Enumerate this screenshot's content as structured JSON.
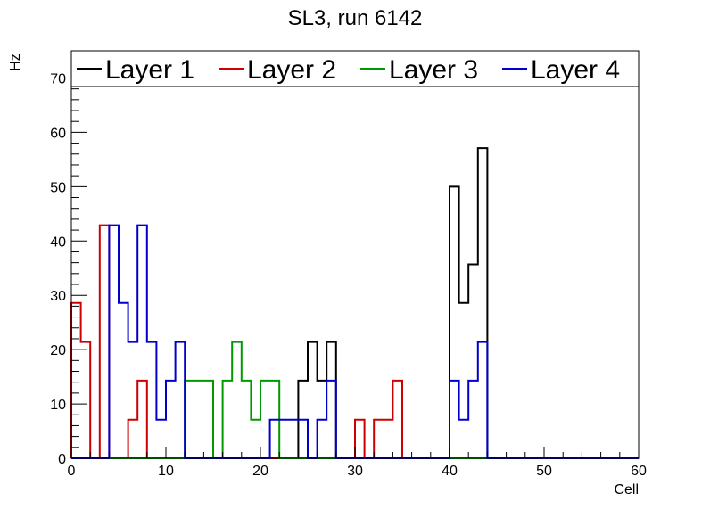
{
  "chart_data": {
    "type": "line",
    "title": "SL3, run 6142",
    "xlabel": "Cell",
    "ylabel": "Hz",
    "xlim": [
      0,
      60
    ],
    "ylim": [
      0,
      75
    ],
    "x_ticks": [
      0,
      10,
      20,
      30,
      40,
      50,
      60
    ],
    "y_ticks": [
      0,
      10,
      20,
      30,
      40,
      50,
      60,
      70
    ],
    "grid": false,
    "legend_position": "top",
    "bin_edges": [
      0,
      1,
      2,
      3,
      4,
      5,
      6,
      7,
      8,
      9,
      10,
      11,
      12,
      13,
      14,
      15,
      16,
      17,
      18,
      19,
      20,
      21,
      22,
      23,
      24,
      25,
      26,
      27,
      28,
      29,
      30,
      31,
      32,
      33,
      34,
      35,
      36,
      37,
      38,
      39,
      40,
      41,
      42,
      43,
      44,
      45,
      46,
      47,
      48,
      49,
      50,
      51,
      52,
      53,
      54,
      55,
      56,
      57,
      58,
      59,
      60
    ],
    "series": [
      {
        "name": "Layer 1",
        "color": "#000000",
        "values": [
          0,
          0,
          0,
          0,
          0,
          0,
          0,
          0,
          0,
          0,
          0,
          0,
          0,
          0,
          0,
          0,
          0,
          0,
          0,
          0,
          0,
          0,
          0,
          0,
          14.3,
          21.4,
          14.3,
          21.4,
          0,
          0,
          0,
          0,
          0,
          0,
          0,
          0,
          0,
          0,
          0,
          0,
          50,
          28.6,
          35.7,
          57.1,
          0,
          0,
          0,
          0,
          0,
          0,
          0,
          0,
          0,
          0,
          0,
          0,
          0,
          0,
          0,
          0
        ]
      },
      {
        "name": "Layer 2",
        "color": "#cc0000",
        "values": [
          28.6,
          21.4,
          0,
          42.9,
          0,
          0,
          7.1,
          14.3,
          0,
          0,
          0,
          0,
          0,
          0,
          0,
          0,
          0,
          0,
          0,
          0,
          0,
          0,
          0,
          0,
          0,
          0,
          0,
          0,
          0,
          0,
          7.1,
          0,
          7.1,
          7.1,
          14.3,
          0,
          0,
          0,
          0,
          0,
          0,
          0,
          0,
          0,
          0,
          0,
          0,
          0,
          0,
          0,
          0,
          0,
          0,
          0,
          0,
          0,
          0,
          0,
          0,
          0
        ]
      },
      {
        "name": "Layer 3",
        "color": "#009900",
        "values": [
          0,
          0,
          0,
          0,
          0,
          0,
          0,
          0,
          0,
          0,
          0,
          0,
          14.3,
          14.3,
          14.3,
          0,
          14.3,
          21.4,
          14.3,
          7.1,
          14.3,
          14.3,
          0,
          0,
          0,
          0,
          0,
          0,
          0,
          0,
          0,
          0,
          0,
          0,
          0,
          0,
          0,
          0,
          0,
          0,
          0,
          0,
          0,
          0,
          0,
          0,
          0,
          0,
          0,
          0,
          0,
          0,
          0,
          0,
          0,
          0,
          0,
          0,
          0,
          0
        ]
      },
      {
        "name": "Layer 4",
        "color": "#0000cc",
        "values": [
          0,
          0,
          0,
          0,
          42.9,
          28.6,
          21.4,
          42.9,
          21.4,
          7.1,
          14.3,
          21.4,
          0,
          0,
          0,
          0,
          0,
          0,
          0,
          0,
          0,
          7.1,
          7.1,
          7.1,
          7.1,
          0,
          7.1,
          14.3,
          0,
          0,
          0,
          0,
          0,
          0,
          0,
          0,
          0,
          0,
          0,
          0,
          14.3,
          7.1,
          14.3,
          21.4,
          0,
          0,
          0,
          0,
          0,
          0,
          0,
          0,
          0,
          0,
          0,
          0,
          0,
          0,
          0,
          0
        ]
      }
    ]
  }
}
